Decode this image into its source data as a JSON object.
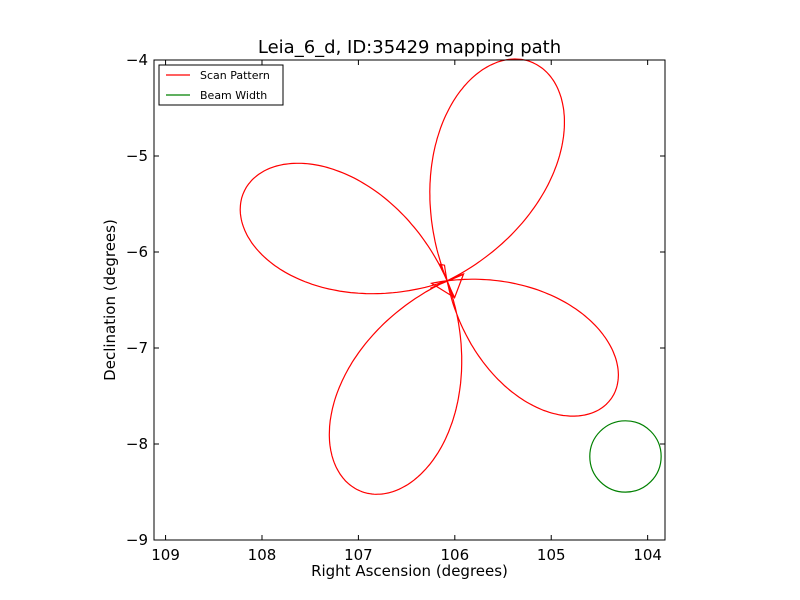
{
  "chart_data": {
    "type": "line",
    "title": "Leia_6_d, ID:35429 mapping path",
    "xlabel": "Right Ascension (degrees)",
    "ylabel": "Declination (degrees)",
    "xlim": [
      109.12,
      103.82
    ],
    "ylim": [
      -9,
      -4
    ],
    "x_inverted": true,
    "xticks": [
      109,
      108,
      107,
      106,
      105,
      104
    ],
    "xtick_labels": [
      "109",
      "108",
      "107",
      "106",
      "105",
      "104"
    ],
    "yticks": [
      -4,
      -5,
      -6,
      -7,
      -8,
      -9
    ],
    "ytick_labels": [
      "−4",
      "−5",
      "−6",
      "−7",
      "−8",
      "−9"
    ],
    "grid": false,
    "legend": {
      "placement": "top-left",
      "entries": [
        {
          "label": "Scan Pattern",
          "color": "#ff0000"
        },
        {
          "label": "Beam Width",
          "color": "#008000"
        }
      ]
    },
    "series": [
      {
        "name": "Scan Pattern",
        "color": "#ff0000",
        "kind": "rose-curve",
        "center": {
          "ra": 106.08,
          "dec": -6.3
        },
        "petals": [
          {
            "ra": 105.21,
            "dec": -4.02
          },
          {
            "ra": 108.19,
            "dec": -5.38
          },
          {
            "ra": 104.38,
            "dec": -7.53
          },
          {
            "ra": 106.98,
            "dec": -8.49
          }
        ],
        "start": {
          "ra": 107.23,
          "dec": -8.52
        }
      },
      {
        "name": "Beam Width",
        "color": "#008000",
        "kind": "circle",
        "center": {
          "ra": 104.23,
          "dec": -8.13
        },
        "radius_deg": 0.37
      }
    ]
  }
}
